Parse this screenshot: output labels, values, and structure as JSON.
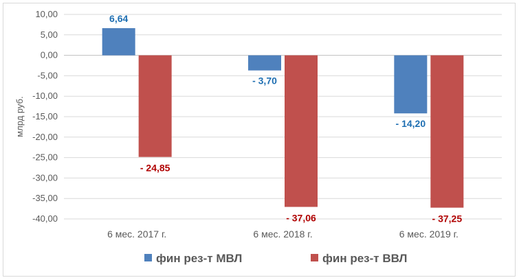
{
  "chart_data": {
    "type": "bar",
    "categories": [
      "6 мес. 2017 г.",
      "6 мес. 2018 г.",
      "6 мес. 2019 г."
    ],
    "series": [
      {
        "name": "фин рез-т МВЛ",
        "values": [
          6.64,
          -3.7,
          -14.2
        ],
        "color": "#4f81bd",
        "label_color": "#1f6fb2",
        "data_labels": [
          "6,64",
          "- 3,70",
          "- 14,20"
        ]
      },
      {
        "name": "фин рез-т ВВЛ",
        "values": [
          -24.85,
          -37.06,
          -37.25
        ],
        "color": "#c0504d",
        "label_color": "#b00000",
        "data_labels": [
          "- 24,85",
          "- 37,06",
          "- 37,25"
        ]
      }
    ],
    "ylabel": "млрд  руб.",
    "ylim": [
      -40,
      10
    ],
    "yticks": [
      10,
      5,
      0,
      -5,
      -10,
      -15,
      -20,
      -25,
      -30,
      -35,
      -40
    ],
    "ytick_labels": [
      "10,00",
      "5,00",
      "0,00",
      "-5,00",
      "-10,00",
      "-15,00",
      "-20,00",
      "-25,00",
      "-30,00",
      "-35,00",
      "-40,00"
    ],
    "grid": true,
    "legend_position": "bottom"
  }
}
